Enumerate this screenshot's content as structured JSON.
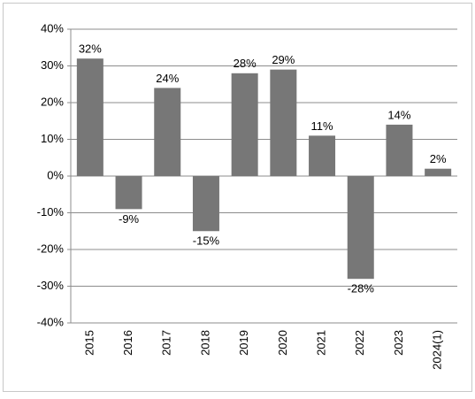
{
  "chart_data": {
    "type": "bar",
    "categories": [
      "2015",
      "2016",
      "2017",
      "2018",
      "2019",
      "2020",
      "2021",
      "2022",
      "2023",
      "2024(1)"
    ],
    "values": [
      32,
      -9,
      24,
      -15,
      28,
      29,
      11,
      -28,
      14,
      2
    ],
    "value_labels": [
      "32%",
      "-9%",
      "24%",
      "-15%",
      "28%",
      "29%",
      "11%",
      "-28%",
      "14%",
      "2%"
    ],
    "color": "#777777",
    "ylim": [
      -40,
      40
    ],
    "yticks": [
      {
        "value": -40,
        "label": "-40%"
      },
      {
        "value": -30,
        "label": "-30%"
      },
      {
        "value": -20,
        "label": "-20%"
      },
      {
        "value": -10,
        "label": "-10%"
      },
      {
        "value": 0,
        "label": "0%"
      },
      {
        "value": 10,
        "label": "10%"
      },
      {
        "value": 20,
        "label": "20%"
      },
      {
        "value": 30,
        "label": "30%"
      },
      {
        "value": 40,
        "label": "40%"
      }
    ],
    "grid": true
  }
}
